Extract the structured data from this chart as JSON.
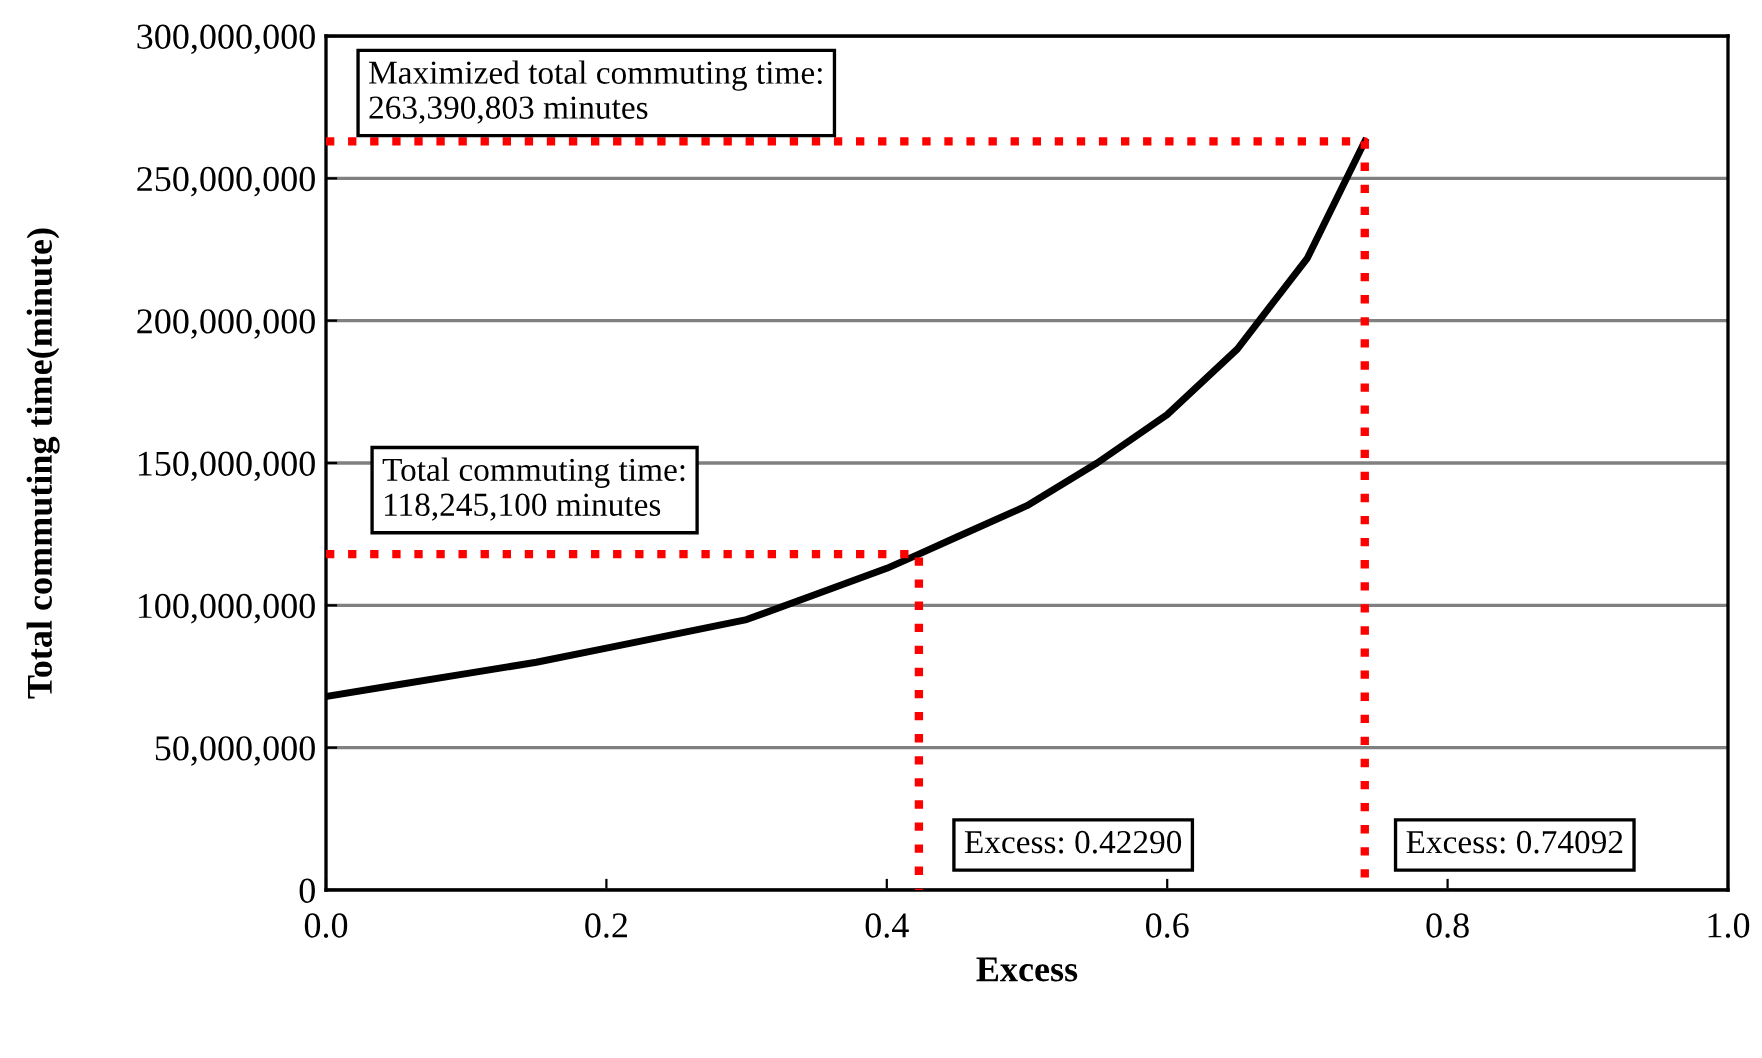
{
  "chart_data": {
    "type": "line",
    "xlabel": "Excess",
    "ylabel": "Total commuting time(minute)",
    "xlim": [
      0,
      1
    ],
    "xticks": [
      {
        "value": 0,
        "label": "0.0"
      },
      {
        "value": 0.2,
        "label": "0.2"
      },
      {
        "value": 0.4,
        "label": "0.4"
      },
      {
        "value": 0.6,
        "label": "0.6"
      },
      {
        "value": 0.8,
        "label": "0.8"
      },
      {
        "value": 1,
        "label": "1.0"
      }
    ],
    "ylim": [
      0,
      300000000
    ],
    "yticks": [
      0,
      {
        "value": 50000000,
        "label": "50,000,000"
      },
      {
        "value": 100000000,
        "label": "100,000,000"
      },
      {
        "value": 150000000,
        "label": "150,000,000"
      },
      {
        "value": 200000000,
        "label": "200,000,000"
      },
      {
        "value": 250000000,
        "label": "250,000,000"
      },
      {
        "value": 300000000,
        "label": "300,000,000"
      }
    ],
    "grid": "y",
    "legend": false,
    "series": [
      {
        "color": "#000000",
        "line_style": "solid",
        "x": [
          0,
          0.05,
          0.1,
          0.15,
          0.2,
          0.25,
          0.3,
          0.35,
          0.4,
          0.4229,
          0.45,
          0.5,
          0.55,
          0.6,
          0.65,
          0.7,
          0.74092
        ],
        "values": [
          68000000,
          72000000,
          76000000,
          80000000,
          85000000,
          90000000,
          95000000,
          104000000,
          113000000,
          118000000,
          124000000,
          135000000,
          150000000,
          167000000,
          190000000,
          222000000,
          263000000
        ]
      },
      {
        "color": "#ff0000",
        "line_style": "dotted",
        "x": [
          0,
          0.4229,
          0.4229
        ],
        "values": [
          118000000,
          118000000,
          0
        ]
      },
      {
        "color": "#ff0000",
        "line_style": "dotted",
        "x": [
          0,
          0.74092,
          0.74092
        ],
        "values": [
          263000000,
          263000000,
          0
        ]
      }
    ],
    "annotations": [
      "Maximized total commuting time:\n263,390,803 minutes",
      "Total commuting time:\n118,245,100 minutes",
      "Excess: 0.42290",
      "Excess: 0.74092"
    ]
  }
}
